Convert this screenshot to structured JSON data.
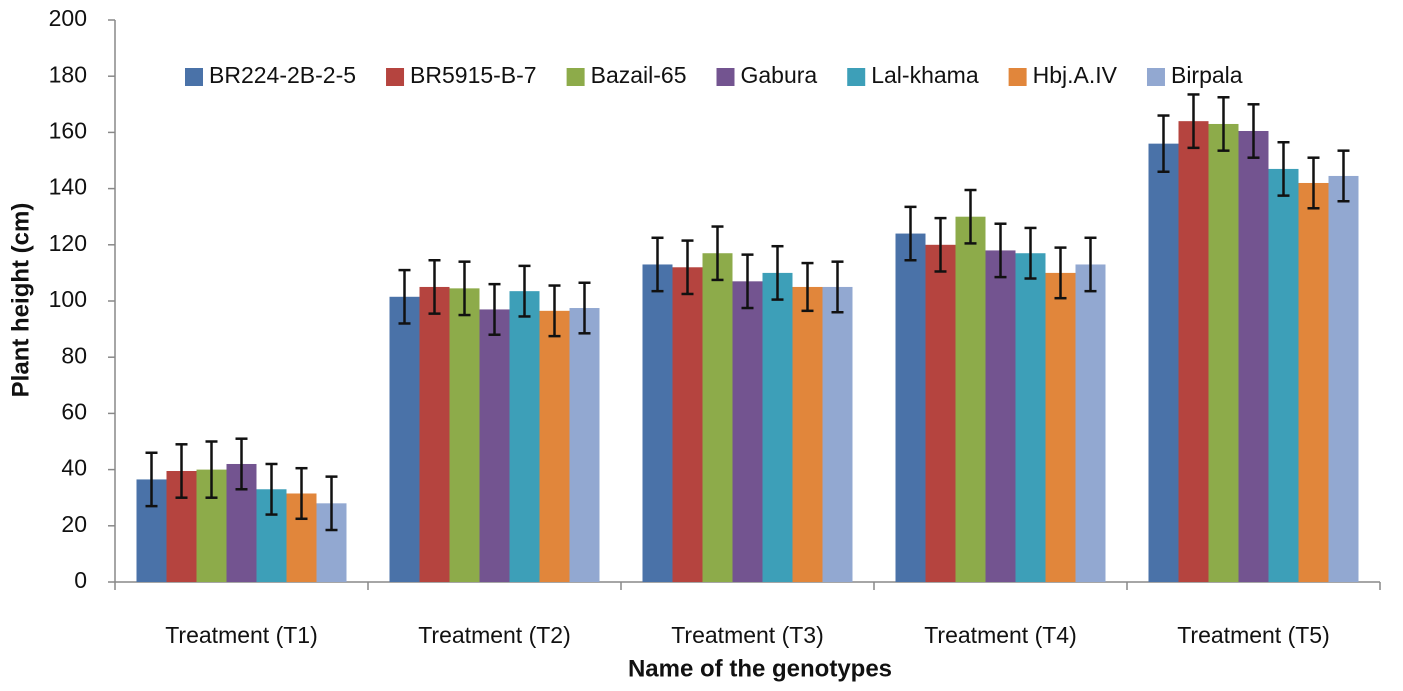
{
  "chart_data": {
    "type": "bar",
    "x_label": "Name of the genotypes",
    "y_label": "Plant height (cm)",
    "categories": [
      "Treatment (T1)",
      "Treatment (T2)",
      "Treatment (T3)",
      "Treatment (T4)",
      "Treatment (T5)"
    ],
    "series": [
      {
        "name": "BR224-2B-2-5",
        "color": "#4a72a8",
        "values": [
          36.5,
          101.5,
          113,
          124,
          156
        ],
        "errors": [
          9.5,
          9.5,
          9.5,
          9.5,
          10
        ]
      },
      {
        "name": "BR5915-B-7",
        "color": "#b5443f",
        "values": [
          39.5,
          105,
          112,
          120,
          164
        ],
        "errors": [
          9.5,
          9.5,
          9.5,
          9.5,
          9.5
        ]
      },
      {
        "name": "Bazail-65",
        "color": "#8dab4a",
        "values": [
          40,
          104.5,
          117,
          130,
          163
        ],
        "errors": [
          10,
          9.5,
          9.5,
          9.5,
          9.5
        ]
      },
      {
        "name": "Gabura",
        "color": "#735490",
        "values": [
          42,
          97,
          107,
          118,
          160.5
        ],
        "errors": [
          9,
          9,
          9.5,
          9.5,
          9.5
        ]
      },
      {
        "name": "Lal-khama",
        "color": "#3d9fb8",
        "values": [
          33,
          103.5,
          110,
          117,
          147
        ],
        "errors": [
          9,
          9,
          9.5,
          9,
          9.5
        ]
      },
      {
        "name": "Hbj.A.IV",
        "color": "#e1863b",
        "values": [
          31.5,
          96.5,
          105,
          110,
          142
        ],
        "errors": [
          9,
          9,
          8.5,
          9,
          9
        ]
      },
      {
        "name": "Birpala",
        "color": "#92a8d1",
        "values": [
          28,
          97.5,
          105,
          113,
          144.5
        ],
        "errors": [
          9.5,
          9,
          9,
          9.5,
          9
        ]
      }
    ],
    "ylim": [
      0,
      200
    ],
    "yticks": [
      0,
      20,
      40,
      60,
      80,
      100,
      120,
      140,
      160,
      180,
      200
    ],
    "legend": "top"
  }
}
